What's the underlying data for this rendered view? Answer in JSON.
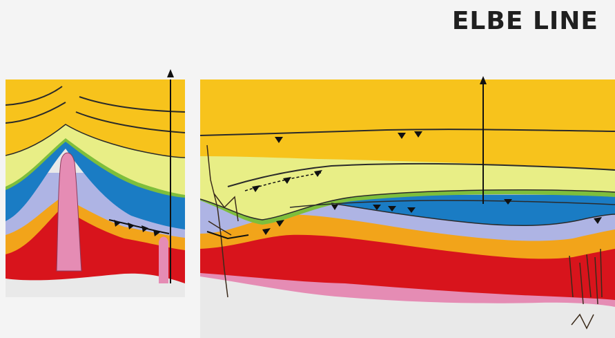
{
  "title": "ELBE LINE",
  "colors": {
    "background": "#f4f4f4",
    "basement": "#e9e9e9",
    "pink": "#e58cb4",
    "red": "#d8141c",
    "orange": "#f2a41a",
    "lavender": "#aeb4e4",
    "blue": "#1a7cc4",
    "green": "#7ebe3c",
    "lime": "#e8ee86",
    "yellow": "#f7c31c",
    "line": "#2a2a2a"
  },
  "panels": [
    "left-section",
    "right-section"
  ],
  "wells": 3
}
